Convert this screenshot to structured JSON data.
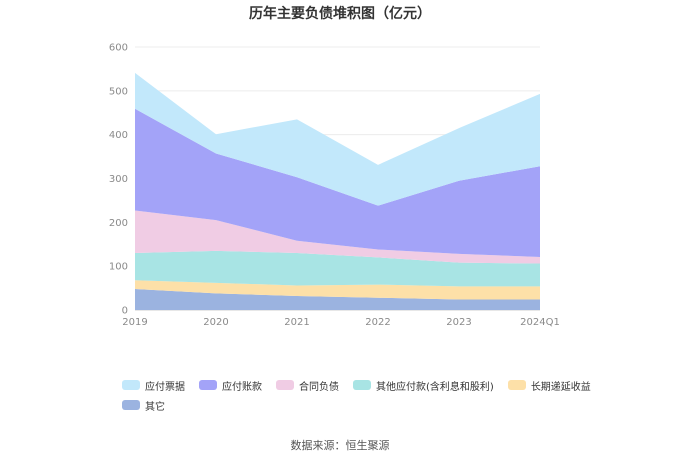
{
  "title": "历年主要负债堆积图（亿元）",
  "source": "数据来源：恒生聚源",
  "chart_data": {
    "type": "area",
    "stacked": true,
    "title": "历年主要负债堆积图（亿元）",
    "x": [
      "2019",
      "2020",
      "2021",
      "2022",
      "2023",
      "2024Q1"
    ],
    "ylim": [
      0,
      600
    ],
    "yticks": [
      0,
      100,
      200,
      300,
      400,
      500,
      600
    ],
    "grid": true,
    "legend_position": "bottom",
    "series": [
      {
        "name": "其它",
        "color": "#9bb3e0",
        "values": [
          48,
          38,
          32,
          28,
          24,
          24
        ]
      },
      {
        "name": "长期递延收益",
        "color": "#fde0a8",
        "values": [
          20,
          24,
          24,
          30,
          30,
          30
        ]
      },
      {
        "name": "其他应付款(含利息和股利)",
        "color": "#a8e4e4",
        "values": [
          62,
          73,
          74,
          62,
          54,
          52
        ]
      },
      {
        "name": "合同负债",
        "color": "#f0cce4",
        "values": [
          97,
          70,
          28,
          18,
          20,
          15
        ]
      },
      {
        "name": "应付账款",
        "color": "#a3a3f8",
        "values": [
          232,
          152,
          145,
          100,
          167,
          207
        ]
      },
      {
        "name": "应付票据",
        "color": "#c2e8fb",
        "values": [
          82,
          44,
          132,
          93,
          120,
          165
        ]
      }
    ],
    "legend_order": [
      "应付票据",
      "应付账款",
      "合同负债",
      "其他应付款(含利息和股利)",
      "长期递延收益",
      "其它"
    ]
  }
}
